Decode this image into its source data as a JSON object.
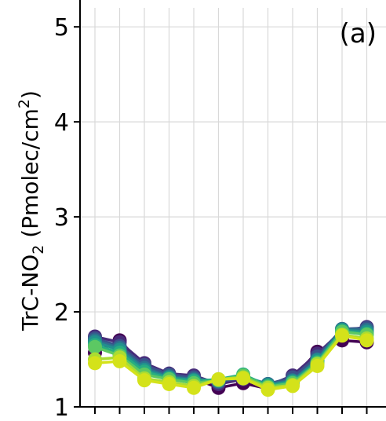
{
  "chart_data": {
    "type": "line",
    "title": "",
    "panel_label": "(a)",
    "ylabel": "TrC-NO₂ (Pmolec/cm²)",
    "ylabel_parts": {
      "prefix": "TrC-NO",
      "sub": "2",
      "mid": " (Pmolec/cm",
      "sup": "2",
      "suffix": ")"
    },
    "xlabel": "",
    "ylim": [
      1,
      5.2
    ],
    "yticks": [
      1,
      2,
      3,
      4,
      5
    ],
    "ytick_labels": [
      "1",
      "2",
      "3",
      "4",
      "5"
    ],
    "grid": true,
    "legend": false,
    "x": [
      1,
      2,
      3,
      4,
      5,
      6,
      7,
      8,
      9,
      10,
      11,
      12
    ],
    "series": [
      {
        "color": "#440154",
        "values": [
          1.57,
          1.7,
          1.42,
          1.3,
          1.3,
          1.2,
          1.25,
          1.19,
          1.3,
          1.58,
          1.7,
          1.68
        ]
      },
      {
        "color": "#472c7a",
        "values": [
          1.74,
          1.68,
          1.46,
          1.35,
          1.33,
          1.24,
          1.29,
          1.22,
          1.33,
          1.56,
          1.8,
          1.84
        ]
      },
      {
        "color": "#3b518b",
        "values": [
          1.72,
          1.64,
          1.44,
          1.34,
          1.31,
          1.26,
          1.31,
          1.24,
          1.31,
          1.53,
          1.82,
          1.83
        ]
      },
      {
        "color": "#2c718e",
        "values": [
          1.7,
          1.62,
          1.41,
          1.32,
          1.29,
          1.27,
          1.32,
          1.24,
          1.28,
          1.5,
          1.82,
          1.81
        ]
      },
      {
        "color": "#21908d",
        "values": [
          1.68,
          1.6,
          1.39,
          1.31,
          1.28,
          1.28,
          1.33,
          1.23,
          1.27,
          1.49,
          1.81,
          1.79
        ]
      },
      {
        "color": "#27ad81",
        "values": [
          1.65,
          1.57,
          1.37,
          1.3,
          1.27,
          1.29,
          1.34,
          1.22,
          1.26,
          1.47,
          1.8,
          1.77
        ]
      },
      {
        "color": "#5cc863",
        "values": [
          1.63,
          1.54,
          1.34,
          1.29,
          1.25,
          1.28,
          1.33,
          1.21,
          1.25,
          1.46,
          1.79,
          1.76
        ]
      },
      {
        "color": "#aadc32",
        "values": [
          1.5,
          1.52,
          1.3,
          1.26,
          1.22,
          1.29,
          1.31,
          1.2,
          1.23,
          1.45,
          1.76,
          1.72
        ]
      },
      {
        "color": "#d4e21a",
        "values": [
          1.46,
          1.48,
          1.28,
          1.24,
          1.2,
          1.29,
          1.3,
          1.18,
          1.22,
          1.43,
          1.75,
          1.7
        ]
      }
    ]
  }
}
